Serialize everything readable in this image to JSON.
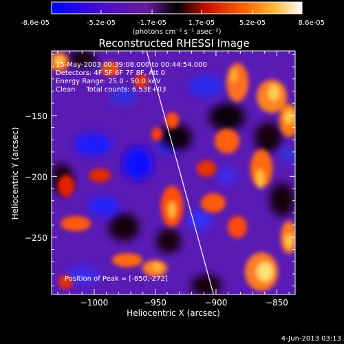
{
  "colorbar": {
    "tick_labels": [
      "-8.6e-05",
      "-5.2e-05",
      "-1.7e-05",
      "1.7e-05",
      "5.2e-05",
      "8.6e-05"
    ],
    "tick_values": [
      -8.6e-05,
      -5.2e-05,
      -1.7e-05,
      1.7e-05,
      5.2e-05,
      8.6e-05
    ],
    "range": [
      -8.6e-05,
      8.6e-05
    ],
    "unit_label": "(photons cm⁻² s⁻¹ asec⁻²)"
  },
  "chart_data": {
    "type": "heatmap",
    "title": "Reconstructed RHESSI Image",
    "xlabel": "Heliocentric X (arcsec)",
    "ylabel": "Heliocentric Y (arcsec)",
    "xlim": [
      -1035,
      -835
    ],
    "ylim": [
      -297,
      -97
    ],
    "x_ticks": [
      -1000,
      -950,
      -900,
      -850
    ],
    "x_tick_labels": [
      "−1000",
      "−950",
      "−900",
      "−850"
    ],
    "y_ticks": [
      -250,
      -200,
      -150
    ],
    "y_tick_labels": [
      "−250",
      "−200",
      "−150"
    ],
    "annotations": [
      "15-May-2003 00:39:08.000 to 00:44:54.000",
      "Detectors: 4F 5F 6F 7F 8F, Att 0",
      "Energy Range: 25.0 - 50.0 keV",
      "Clean     Total counts: 6.53E+03"
    ],
    "peak_label": "Position of Peak = [-850,-272]",
    "peak_position": [
      -850,
      -272
    ],
    "limb_line": [
      [
        -957,
        -97
      ],
      [
        -902,
        -297
      ]
    ],
    "colormap": [
      "#0000ff",
      "#5a1ee6",
      "#7a3cd2",
      "#000000",
      "#e01e00",
      "#ff7800",
      "#ffe066",
      "#ffffff"
    ]
  },
  "footer": {
    "date": "4-Jun-2013 03:13"
  }
}
